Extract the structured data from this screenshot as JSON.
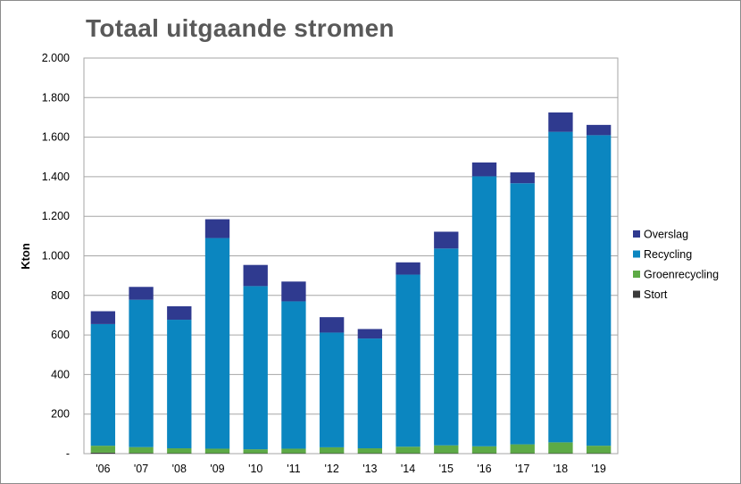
{
  "chart_data": {
    "type": "bar",
    "stacked": true,
    "title": "Totaal uitgaande stromen",
    "ylabel": "Kton",
    "xlabel": "",
    "ylim": [
      0,
      2000
    ],
    "yticks": [
      {
        "value": 0,
        "label": "-"
      },
      {
        "value": 200,
        "label": "200"
      },
      {
        "value": 400,
        "label": "400"
      },
      {
        "value": 600,
        "label": "600"
      },
      {
        "value": 800,
        "label": "800"
      },
      {
        "value": 1000,
        "label": "1.000"
      },
      {
        "value": 1200,
        "label": "1.200"
      },
      {
        "value": 1400,
        "label": "1.400"
      },
      {
        "value": 1600,
        "label": "1.600"
      },
      {
        "value": 1800,
        "label": "1.800"
      },
      {
        "value": 2000,
        "label": "2.000"
      }
    ],
    "grid": true,
    "legend_position": "right",
    "categories": [
      "'06",
      "'07",
      "'08",
      "'09",
      "'10",
      "'11",
      "'12",
      "'13",
      "'14",
      "'15",
      "'16",
      "'17",
      "'18",
      "'19"
    ],
    "series": [
      {
        "name": "Stort",
        "color": "#3a3a3a",
        "values": [
          5,
          3,
          2,
          2,
          2,
          2,
          2,
          2,
          2,
          2,
          2,
          2,
          2,
          2
        ]
      },
      {
        "name": "Groenrecycling",
        "color": "#5daa46",
        "values": [
          35,
          30,
          25,
          23,
          20,
          23,
          30,
          25,
          33,
          40,
          35,
          45,
          55,
          38
        ]
      },
      {
        "name": "Recycling",
        "color": "#0b86c0",
        "values": [
          615,
          745,
          650,
          1065,
          825,
          745,
          580,
          555,
          870,
          995,
          1365,
          1320,
          1570,
          1570
        ]
      },
      {
        "name": "Overslag",
        "color": "#2f3a8f",
        "values": [
          65,
          65,
          68,
          95,
          107,
          100,
          78,
          48,
          62,
          85,
          70,
          55,
          98,
          52
        ]
      }
    ]
  }
}
